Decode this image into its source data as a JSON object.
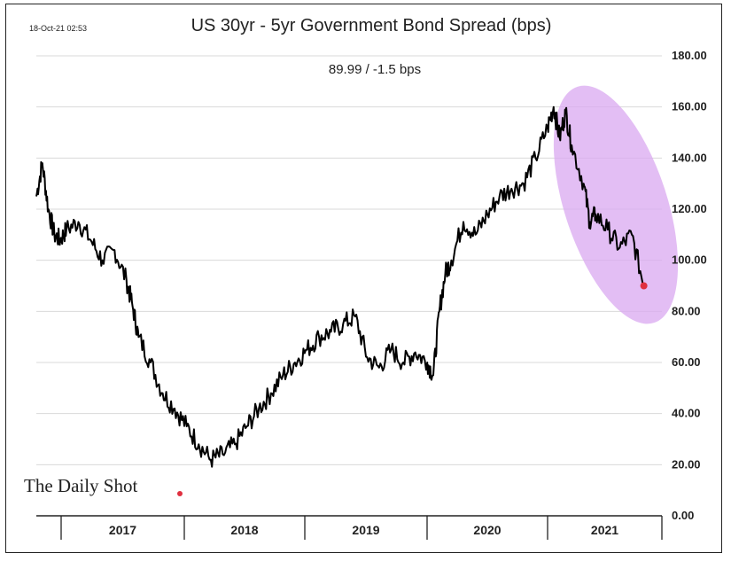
{
  "timestamp": "18-Oct-21 02:53",
  "chart_data": {
    "type": "line",
    "title": "US 30yr - 5yr Government Bond Spread (bps)",
    "subtitle": "89.99  /  -1.5 bps",
    "xlabel": "",
    "ylabel": "",
    "ylim": [
      0,
      180
    ],
    "yticks": [
      "0.00",
      "20.00",
      "40.00",
      "60.00",
      "80.00",
      "100.00",
      "120.00",
      "140.00",
      "160.00",
      "180.00"
    ],
    "x_categories": [
      "2017",
      "2018",
      "2019",
      "2020",
      "2021"
    ],
    "grid": true,
    "line_color": "#000000",
    "highlight_color": "#d9a8f0",
    "last_point_color": "#e03040",
    "series": [
      {
        "x": [
          2016.75,
          2016.8,
          2016.85,
          2016.9,
          2016.95,
          2017.0,
          2017.1,
          2017.2,
          2017.3,
          2017.4,
          2017.5,
          2017.55,
          2017.6,
          2017.7,
          2017.8,
          2017.9,
          2018.0,
          2018.1,
          2018.2,
          2018.3,
          2018.4,
          2018.5,
          2018.6,
          2018.7,
          2018.8,
          2018.9,
          2019.0,
          2019.1,
          2019.2,
          2019.3,
          2019.4,
          2019.5,
          2019.6,
          2019.7,
          2019.8,
          2019.9,
          2020.0,
          2020.05,
          2020.1,
          2020.15,
          2020.2,
          2020.3,
          2020.4,
          2020.5,
          2020.6,
          2020.7,
          2020.8,
          2020.9,
          2021.0,
          2021.05,
          2021.1,
          2021.15,
          2021.2,
          2021.3,
          2021.35,
          2021.4,
          2021.5,
          2021.6,
          2021.7,
          2021.8
        ],
        "values": [
          125,
          138,
          120,
          110,
          108,
          112,
          115,
          108,
          100,
          104,
          92,
          82,
          70,
          60,
          48,
          42,
          35,
          28,
          22,
          24,
          28,
          35,
          42,
          48,
          55,
          60,
          65,
          70,
          72,
          75,
          78,
          62,
          58,
          65,
          60,
          64,
          60,
          55,
          80,
          95,
          100,
          115,
          110,
          118,
          125,
          128,
          130,
          140,
          152,
          160,
          148,
          158,
          145,
          130,
          115,
          118,
          112,
          105,
          110,
          90
        ]
      }
    ]
  },
  "watermark": "The Daily Shot"
}
